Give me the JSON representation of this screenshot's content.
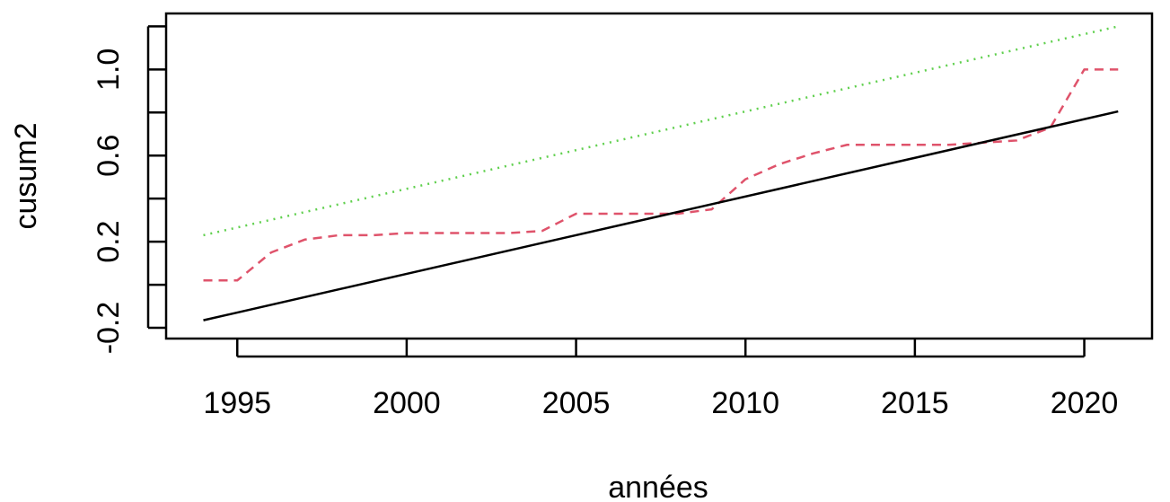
{
  "chart_data": {
    "type": "line",
    "xlabel": "années",
    "ylabel": "cusum2",
    "xlim": [
      1992.9,
      2022.0
    ],
    "ylim": [
      -0.25,
      1.26
    ],
    "x_ticks": [
      1995,
      2000,
      2005,
      2010,
      2015,
      2020
    ],
    "x_tick_labels": [
      "1995",
      "2000",
      "2005",
      "2010",
      "2015",
      "2020"
    ],
    "y_ticks": [
      -0.2,
      0.0,
      0.2,
      0.4,
      0.6,
      0.8,
      1.0,
      1.2
    ],
    "y_tick_labels": [
      "-0.2",
      "",
      "0.2",
      "",
      "0.6",
      "",
      "1.0",
      ""
    ],
    "grid": false,
    "series": [
      {
        "key": "cusum2",
        "color": "#DF536B",
        "dash": "dashed",
        "x": [
          1994,
          1995,
          1996,
          1997,
          1998,
          1999,
          2000,
          2001,
          2002,
          2003,
          2004,
          2005,
          2006,
          2007,
          2008,
          2009,
          2010,
          2011,
          2012,
          2013,
          2014,
          2015,
          2016,
          2017,
          2018,
          2019,
          2020,
          2021
        ],
        "y": [
          0.02,
          0.02,
          0.15,
          0.21,
          0.23,
          0.23,
          0.24,
          0.24,
          0.24,
          0.24,
          0.25,
          0.33,
          0.33,
          0.33,
          0.33,
          0.35,
          0.49,
          0.56,
          0.61,
          0.65,
          0.65,
          0.65,
          0.65,
          0.66,
          0.67,
          0.73,
          1.0,
          1.0
        ]
      },
      {
        "key": "lower",
        "color": "#000000",
        "dash": "solid",
        "x": [
          1994,
          2021
        ],
        "y": [
          -0.165,
          0.805
        ]
      },
      {
        "key": "upper",
        "color": "#61D04F",
        "dash": "dotted",
        "x": [
          1994,
          2021
        ],
        "y": [
          0.23,
          1.2
        ]
      }
    ]
  }
}
